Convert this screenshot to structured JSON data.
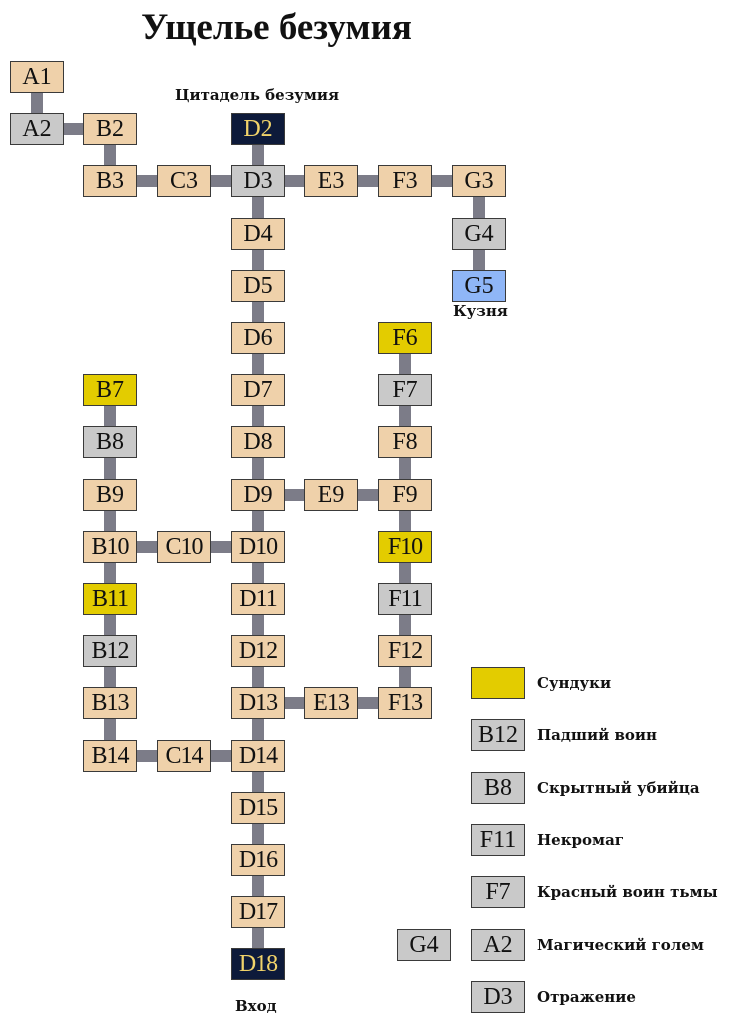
{
  "title": "Ущелье безумия",
  "labels": {
    "citadel": "Цитадель безумия",
    "forge": "Кузня",
    "entrance": "Вход"
  },
  "rooms": [
    {
      "id": "A1",
      "type": "normal"
    },
    {
      "id": "A2",
      "type": "enemy"
    },
    {
      "id": "B2",
      "type": "normal"
    },
    {
      "id": "D2",
      "type": "special"
    },
    {
      "id": "B3",
      "type": "normal"
    },
    {
      "id": "C3",
      "type": "normal"
    },
    {
      "id": "D3",
      "type": "enemy"
    },
    {
      "id": "E3",
      "type": "normal"
    },
    {
      "id": "F3",
      "type": "normal"
    },
    {
      "id": "G3",
      "type": "normal"
    },
    {
      "id": "D4",
      "type": "normal"
    },
    {
      "id": "G4",
      "type": "enemy"
    },
    {
      "id": "D5",
      "type": "normal"
    },
    {
      "id": "G5",
      "type": "forge"
    },
    {
      "id": "D6",
      "type": "normal"
    },
    {
      "id": "F6",
      "type": "chest"
    },
    {
      "id": "B7",
      "type": "chest"
    },
    {
      "id": "D7",
      "type": "normal"
    },
    {
      "id": "F7",
      "type": "enemy"
    },
    {
      "id": "B8",
      "type": "enemy"
    },
    {
      "id": "D8",
      "type": "normal"
    },
    {
      "id": "F8",
      "type": "normal"
    },
    {
      "id": "B9",
      "type": "normal"
    },
    {
      "id": "D9",
      "type": "normal"
    },
    {
      "id": "E9",
      "type": "normal"
    },
    {
      "id": "F9",
      "type": "normal"
    },
    {
      "id": "B10",
      "type": "normal"
    },
    {
      "id": "C10",
      "type": "normal"
    },
    {
      "id": "D10",
      "type": "normal"
    },
    {
      "id": "F10",
      "type": "chest"
    },
    {
      "id": "B11",
      "type": "chest"
    },
    {
      "id": "D11",
      "type": "normal"
    },
    {
      "id": "F11",
      "type": "enemy"
    },
    {
      "id": "B12",
      "type": "enemy"
    },
    {
      "id": "D12",
      "type": "normal"
    },
    {
      "id": "F12",
      "type": "normal"
    },
    {
      "id": "B13",
      "type": "normal"
    },
    {
      "id": "D13",
      "type": "normal"
    },
    {
      "id": "E13",
      "type": "normal"
    },
    {
      "id": "F13",
      "type": "normal"
    },
    {
      "id": "B14",
      "type": "normal"
    },
    {
      "id": "C14",
      "type": "normal"
    },
    {
      "id": "D14",
      "type": "normal"
    },
    {
      "id": "D15",
      "type": "normal"
    },
    {
      "id": "D16",
      "type": "normal"
    },
    {
      "id": "D17",
      "type": "normal"
    },
    {
      "id": "D18",
      "type": "special"
    }
  ],
  "connections": [
    [
      "A1",
      "A2"
    ],
    [
      "A2",
      "B2"
    ],
    [
      "B2",
      "B3"
    ],
    [
      "B3",
      "C3"
    ],
    [
      "C3",
      "D3"
    ],
    [
      "D2",
      "D3"
    ],
    [
      "D3",
      "E3"
    ],
    [
      "E3",
      "F3"
    ],
    [
      "F3",
      "G3"
    ],
    [
      "G3",
      "G4"
    ],
    [
      "G4",
      "G5"
    ],
    [
      "D3",
      "D4"
    ],
    [
      "D4",
      "D5"
    ],
    [
      "D5",
      "D6"
    ],
    [
      "D6",
      "D7"
    ],
    [
      "D7",
      "D8"
    ],
    [
      "D8",
      "D9"
    ],
    [
      "D9",
      "D10"
    ],
    [
      "D10",
      "D11"
    ],
    [
      "D11",
      "D12"
    ],
    [
      "D12",
      "D13"
    ],
    [
      "D13",
      "D14"
    ],
    [
      "D14",
      "D15"
    ],
    [
      "D15",
      "D16"
    ],
    [
      "D16",
      "D17"
    ],
    [
      "D17",
      "D18"
    ],
    [
      "D9",
      "E9"
    ],
    [
      "E9",
      "F9"
    ],
    [
      "F6",
      "F7"
    ],
    [
      "F7",
      "F8"
    ],
    [
      "F8",
      "F9"
    ],
    [
      "F9",
      "F10"
    ],
    [
      "F10",
      "F11"
    ],
    [
      "F11",
      "F12"
    ],
    [
      "F12",
      "F13"
    ],
    [
      "D13",
      "E13"
    ],
    [
      "E13",
      "F13"
    ],
    [
      "B7",
      "B8"
    ],
    [
      "B8",
      "B9"
    ],
    [
      "B9",
      "B10"
    ],
    [
      "B10",
      "B11"
    ],
    [
      "B11",
      "B12"
    ],
    [
      "B12",
      "B13"
    ],
    [
      "B13",
      "B14"
    ],
    [
      "B10",
      "C10"
    ],
    [
      "C10",
      "D10"
    ],
    [
      "B14",
      "C14"
    ],
    [
      "C14",
      "D14"
    ]
  ],
  "legend": [
    {
      "swatch": "",
      "type": "chest",
      "text": "Сундуки"
    },
    {
      "swatch": "B12",
      "type": "enemy",
      "text": "Падший воин"
    },
    {
      "swatch": "B8",
      "type": "enemy",
      "text": "Скрытный убийца"
    },
    {
      "swatch": "F11",
      "type": "enemy",
      "text": "Некромаг"
    },
    {
      "swatch": "F7",
      "type": "enemy",
      "text": "Красный воин тьмы"
    },
    {
      "swatch": "A2",
      "type": "enemy",
      "text": "Магический голем",
      "extra": "G4"
    },
    {
      "swatch": "D3",
      "type": "enemy",
      "text": "Отражение"
    }
  ],
  "colors": {
    "normal": "#efd1aa",
    "chest": "#e3cc00",
    "enemy": "#c9c9c9",
    "special": "#0d1a3a",
    "forge": "#8fb6f7",
    "connector": "#7c7c88"
  }
}
